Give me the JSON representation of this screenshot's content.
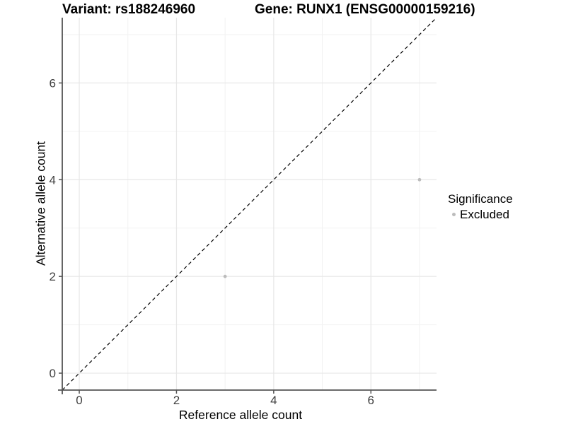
{
  "colors": {
    "background": "#ffffff",
    "axis_line": "#545454",
    "grid_major": "#e7e7e7",
    "grid_minor": "#f2f2f2",
    "tick_text": "#404040",
    "title_text": "#000000",
    "point": "#bcbcbc",
    "identity_line": "#000000"
  },
  "chart_data": {
    "type": "scatter",
    "title_left": "Variant: rs188246960",
    "title_right": "Gene: RUNX1 (ENSG00000159216)",
    "xlabel": "Reference allele count",
    "ylabel": "Alternative allele count",
    "xlim": [
      -0.35,
      7.35
    ],
    "ylim": [
      -0.35,
      7.35
    ],
    "x_ticks": [
      0,
      2,
      4,
      6
    ],
    "y_ticks": [
      0,
      2,
      4,
      6
    ],
    "x_minor_gridlines": [
      1,
      3,
      5,
      7
    ],
    "y_minor_gridlines": [
      1,
      3,
      5,
      7
    ],
    "grid": "on",
    "identity_line": {
      "slope": 1,
      "intercept": 0,
      "style": "dashed",
      "color": "#000000"
    },
    "series": [
      {
        "name": "Excluded",
        "color": "#bcbcbc",
        "points": [
          {
            "x": 3,
            "y": 2
          },
          {
            "x": 7,
            "y": 4
          }
        ]
      }
    ],
    "legend": {
      "title": "Significance",
      "position": "right",
      "entries": [
        {
          "label": "Excluded",
          "color": "#bcbcbc",
          "marker": "circle-icon"
        }
      ]
    }
  }
}
